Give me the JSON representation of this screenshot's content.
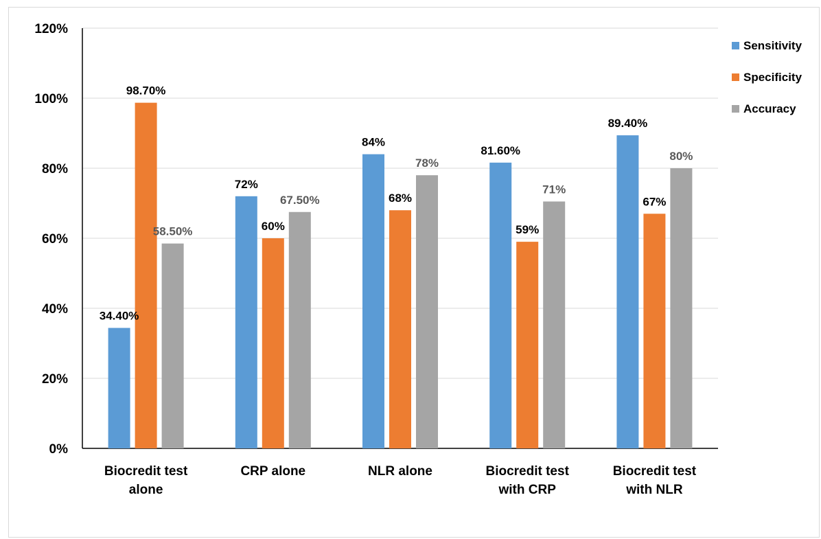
{
  "chart_data": {
    "type": "bar",
    "categories": [
      [
        "Biocredit  test",
        "alone"
      ],
      [
        "CRP alone"
      ],
      [
        "NLR alone"
      ],
      [
        "Biocredit  test",
        "with CRP"
      ],
      [
        "Biocredit  test",
        "with NLR"
      ]
    ],
    "series": [
      {
        "name": "Sensitivity",
        "color": "#5b9bd5",
        "values": [
          34.4,
          72,
          84,
          81.6,
          89.4
        ],
        "labels": [
          "34.40%",
          "72%",
          "84%",
          "81.60%",
          "89.40%"
        ],
        "label_color": "#000000"
      },
      {
        "name": "Specificity",
        "color": "#ed7d31",
        "values": [
          98.7,
          60,
          68,
          59,
          67
        ],
        "labels": [
          "98.70%",
          "60%",
          "68%",
          "59%",
          "67%"
        ],
        "label_color": "#000000"
      },
      {
        "name": "Accuracy",
        "color": "#a5a5a5",
        "values": [
          58.5,
          67.5,
          78,
          70.5,
          80
        ],
        "labels": [
          "58.50%",
          "67.50%",
          "78%",
          "71%",
          "80%"
        ],
        "label_color": "#595959"
      }
    ],
    "ylim": [
      0,
      120
    ],
    "yticks": [
      "0%",
      "20%",
      "40%",
      "60%",
      "80%",
      "100%",
      "120%"
    ],
    "grid": true,
    "legend_position": "top-right"
  }
}
